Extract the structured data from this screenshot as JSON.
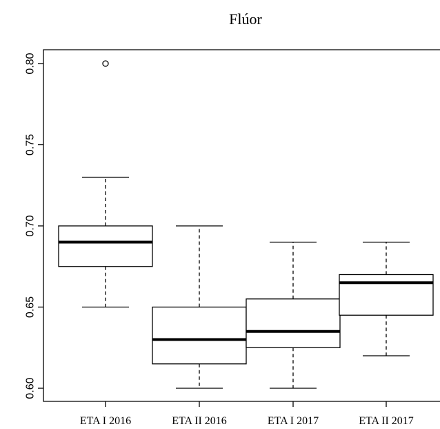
{
  "chart_data": {
    "type": "boxplot",
    "title": "Flúor",
    "xlabel": "",
    "ylabel": "",
    "categories": [
      "ETA I 2016",
      "ETA II 2016",
      "ETA I 2017",
      "ETA II 2017"
    ],
    "boxes": [
      {
        "whisker_low": 0.65,
        "q1": 0.675,
        "median": 0.69,
        "q3": 0.7,
        "whisker_high": 0.73,
        "outliers": [
          0.8
        ]
      },
      {
        "whisker_low": 0.6,
        "q1": 0.615,
        "median": 0.63,
        "q3": 0.65,
        "whisker_high": 0.7,
        "outliers": []
      },
      {
        "whisker_low": 0.6,
        "q1": 0.625,
        "median": 0.635,
        "q3": 0.655,
        "whisker_high": 0.69,
        "outliers": []
      },
      {
        "whisker_low": 0.62,
        "q1": 0.645,
        "median": 0.665,
        "q3": 0.67,
        "whisker_high": 0.69,
        "outliers": []
      }
    ],
    "yticks": [
      "0.60",
      "0.65",
      "0.70",
      "0.75",
      "0.80"
    ],
    "ylim": [
      0.592,
      0.808
    ],
    "grid": false,
    "legend": "none"
  }
}
